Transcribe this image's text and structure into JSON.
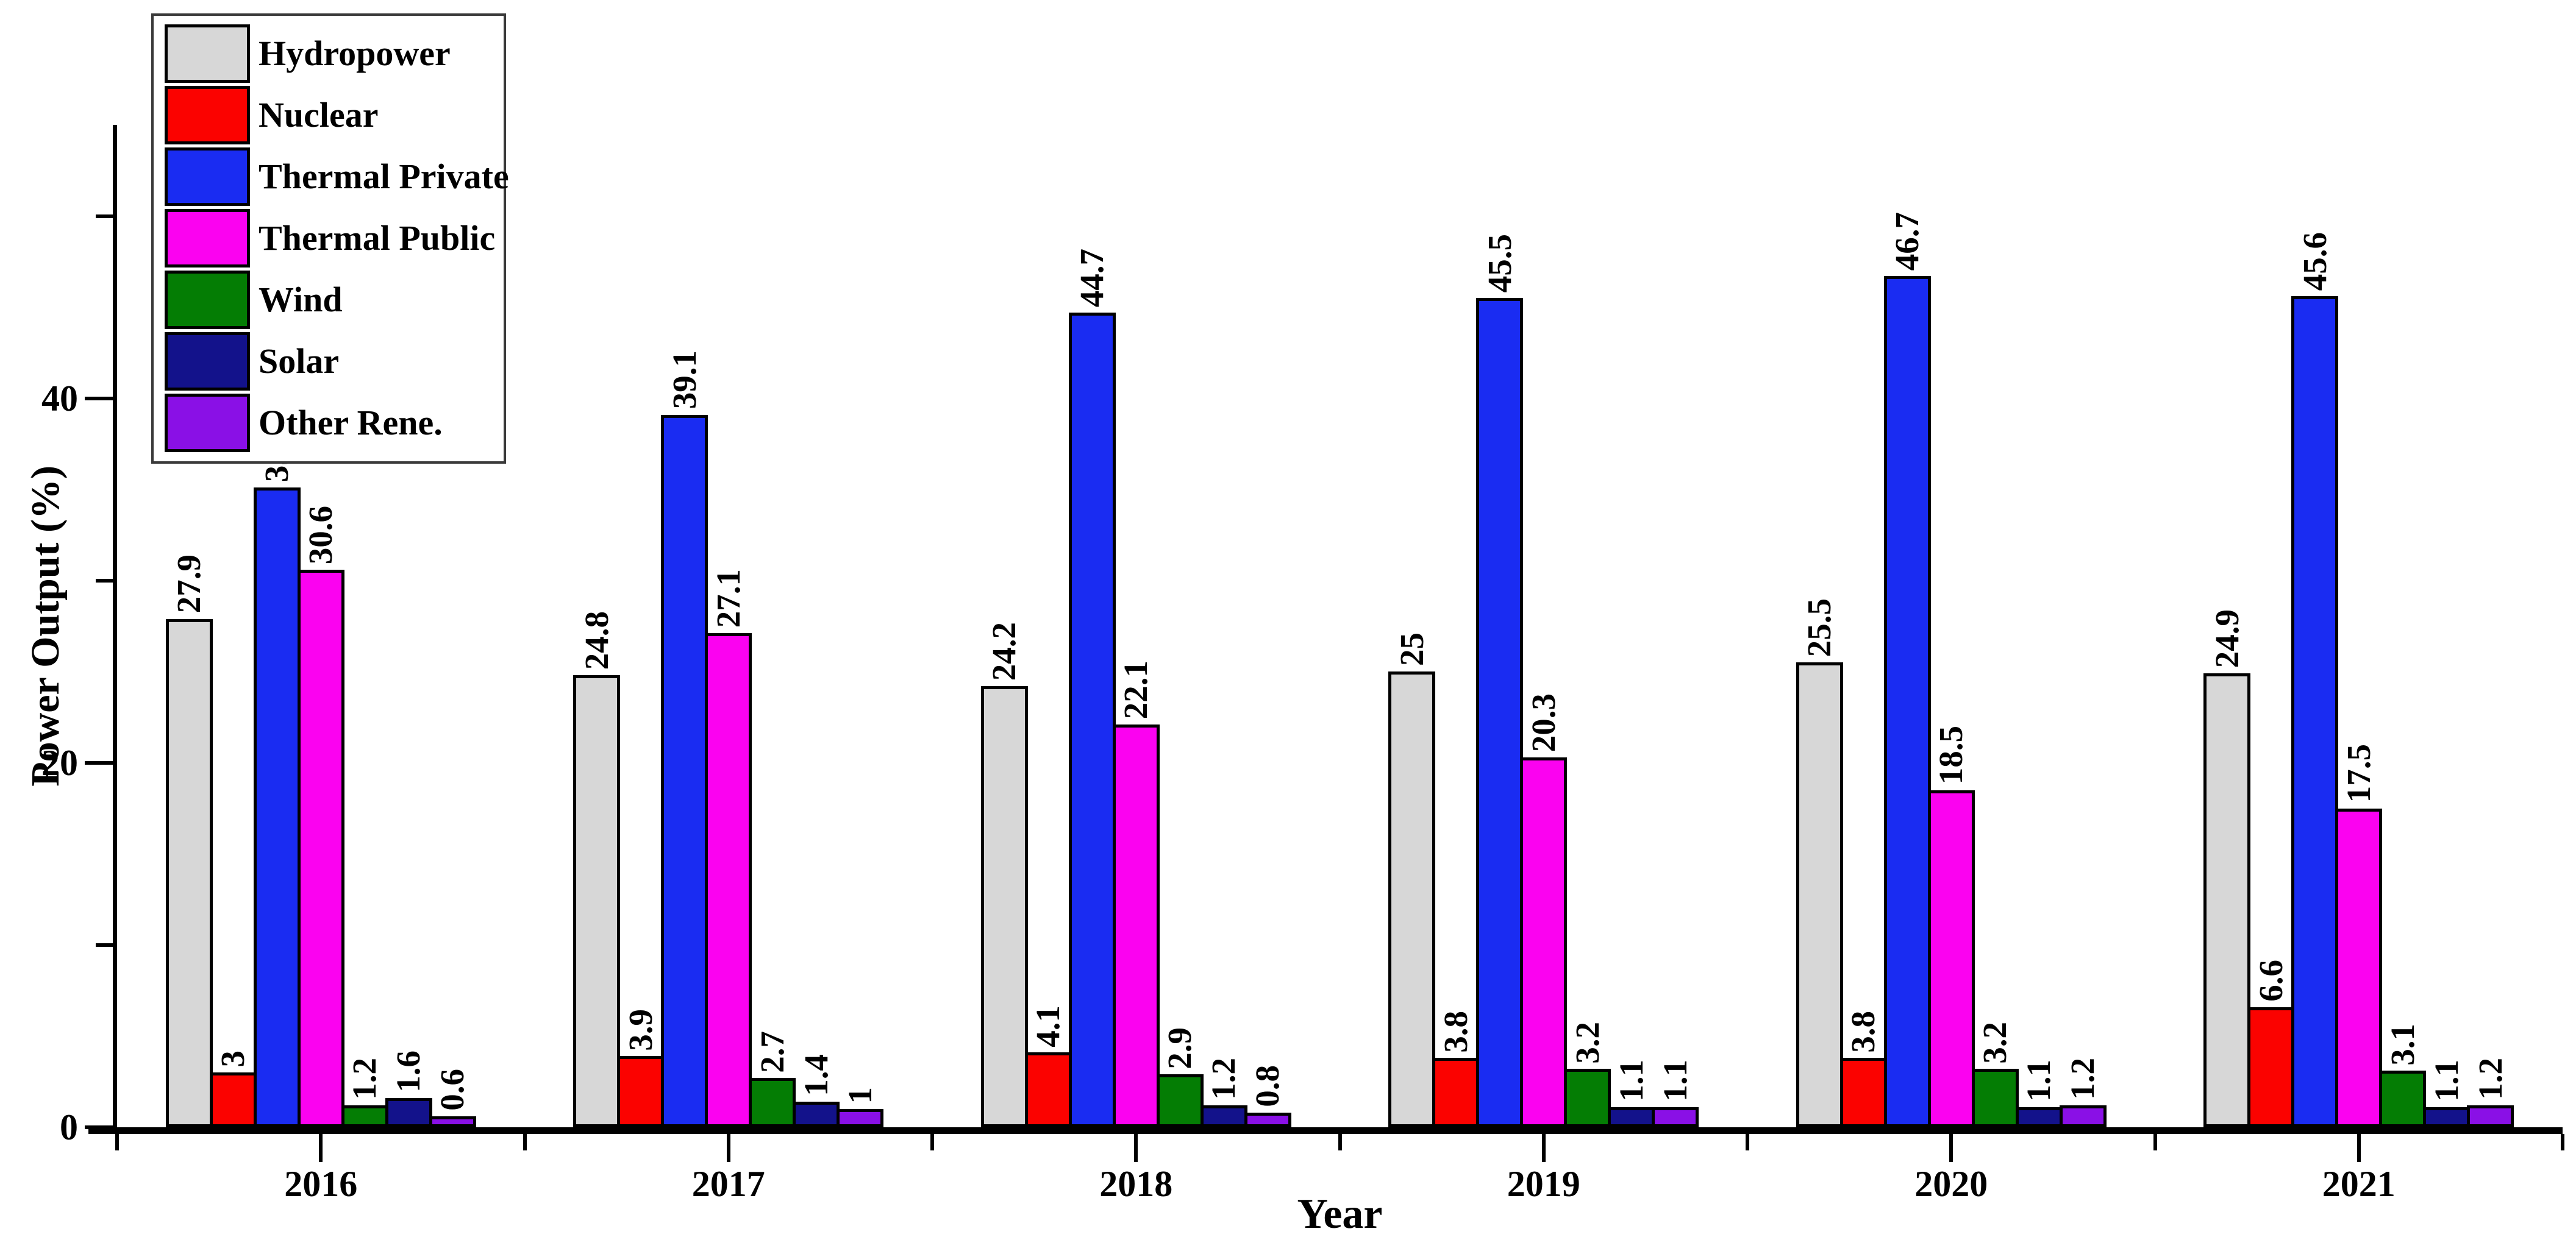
{
  "chart_data": {
    "type": "bar",
    "title": "",
    "xlabel": "Year",
    "ylabel": "Power Output (%)",
    "ylim": [
      0,
      55
    ],
    "yticks_major": [
      0,
      20,
      40
    ],
    "ytick_labels": [
      "0",
      "20",
      "40"
    ],
    "yticks_minor": [
      10,
      30,
      50
    ],
    "grid": false,
    "legend_position": "top-left",
    "categories": [
      "2016",
      "2017",
      "2018",
      "2019",
      "2020",
      "2021"
    ],
    "series": [
      {
        "name": "Hydropower",
        "color": "#d7d7d7",
        "values": [
          "27.9",
          "24.8",
          "24.2",
          "25",
          "25.5",
          "24.9"
        ]
      },
      {
        "name": "Nuclear",
        "color": "#fb0200",
        "values": [
          "3",
          "3.9",
          "4.1",
          "3.8",
          "3.8",
          "6.6"
        ]
      },
      {
        "name": "Thermal Private",
        "color": "#1a2cf2",
        "values": [
          "35.1",
          "39.1",
          "44.7",
          "45.5",
          "46.7",
          "45.6"
        ]
      },
      {
        "name": "Thermal Public",
        "color": "#fb02f0",
        "values": [
          "30.6",
          "27.1",
          "22.1",
          "20.3",
          "18.5",
          "17.5"
        ]
      },
      {
        "name": "Wind",
        "color": "#047d04",
        "values": [
          "1.2",
          "2.7",
          "2.9",
          "3.2",
          "3.2",
          "3.1"
        ]
      },
      {
        "name": "Solar",
        "color": "#13128b",
        "values": [
          "1.6",
          "1.4",
          "1.2",
          "1.1",
          "1.1",
          "1.1"
        ]
      },
      {
        "name": "Other Rene.",
        "color": "#8a10e6",
        "values": [
          "0.6",
          "1",
          "0.8",
          "1.1",
          "1.2",
          "1.2"
        ]
      }
    ]
  }
}
